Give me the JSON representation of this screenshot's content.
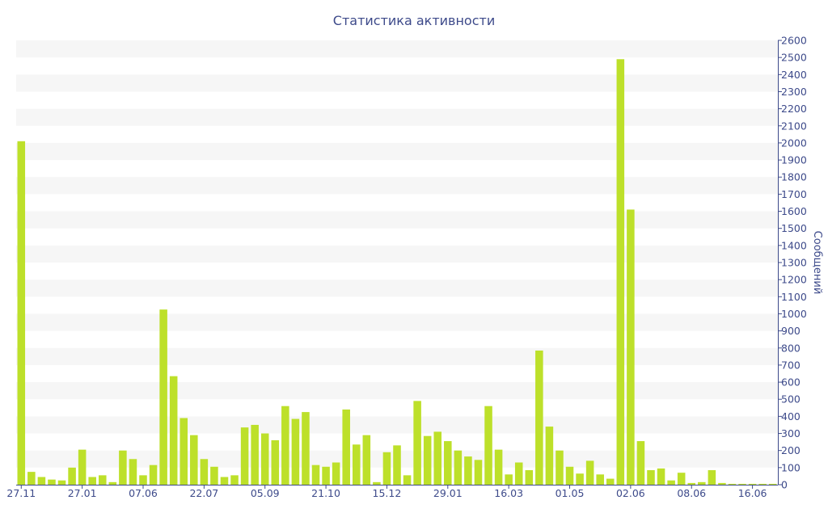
{
  "chart_data": {
    "type": "bar",
    "title": "Статистика активности",
    "xlabel": "",
    "ylabel": "Сообщений",
    "ylim": [
      0,
      2600
    ],
    "y_ticks": [
      0,
      100,
      200,
      300,
      400,
      500,
      600,
      700,
      800,
      900,
      1000,
      1100,
      1200,
      1300,
      1400,
      1500,
      1600,
      1700,
      1800,
      1900,
      2000,
      2100,
      2200,
      2300,
      2400,
      2500,
      2600
    ],
    "y_axis_position": "right",
    "grid": true,
    "legend": "none",
    "x_tick_labels": [
      {
        "label": "27.11",
        "at_index": 0
      },
      {
        "label": "27.01",
        "at_index": 6
      },
      {
        "label": "07.06",
        "at_index": 12
      },
      {
        "label": "22.07",
        "at_index": 18
      },
      {
        "label": "05.09",
        "at_index": 24
      },
      {
        "label": "21.10",
        "at_index": 30
      },
      {
        "label": "15.12",
        "at_index": 36
      },
      {
        "label": "29.01",
        "at_index": 42
      },
      {
        "label": "16.03",
        "at_index": 48
      },
      {
        "label": "01.05",
        "at_index": 54
      },
      {
        "label": "02.06",
        "at_index": 60
      },
      {
        "label": "08.06",
        "at_index": 66
      },
      {
        "label": "16.06",
        "at_index": 72
      }
    ],
    "values": [
      2010,
      75,
      45,
      30,
      25,
      100,
      205,
      45,
      55,
      15,
      200,
      150,
      55,
      115,
      1025,
      635,
      390,
      290,
      150,
      105,
      45,
      55,
      335,
      350,
      300,
      260,
      460,
      385,
      425,
      115,
      105,
      130,
      440,
      235,
      290,
      15,
      190,
      230,
      55,
      490,
      285,
      310,
      255,
      200,
      165,
      145,
      460,
      205,
      60,
      130,
      85,
      785,
      340,
      200,
      105,
      65,
      140,
      60,
      35,
      2490,
      1610,
      255,
      85,
      95,
      25,
      70,
      10,
      15,
      85,
      10,
      5,
      5,
      5,
      5,
      5
    ],
    "colors": {
      "bar": "#bde02a",
      "text": "#3d4a8a",
      "axis": "#3d4a8a",
      "band": "#f6f6f6"
    }
  }
}
